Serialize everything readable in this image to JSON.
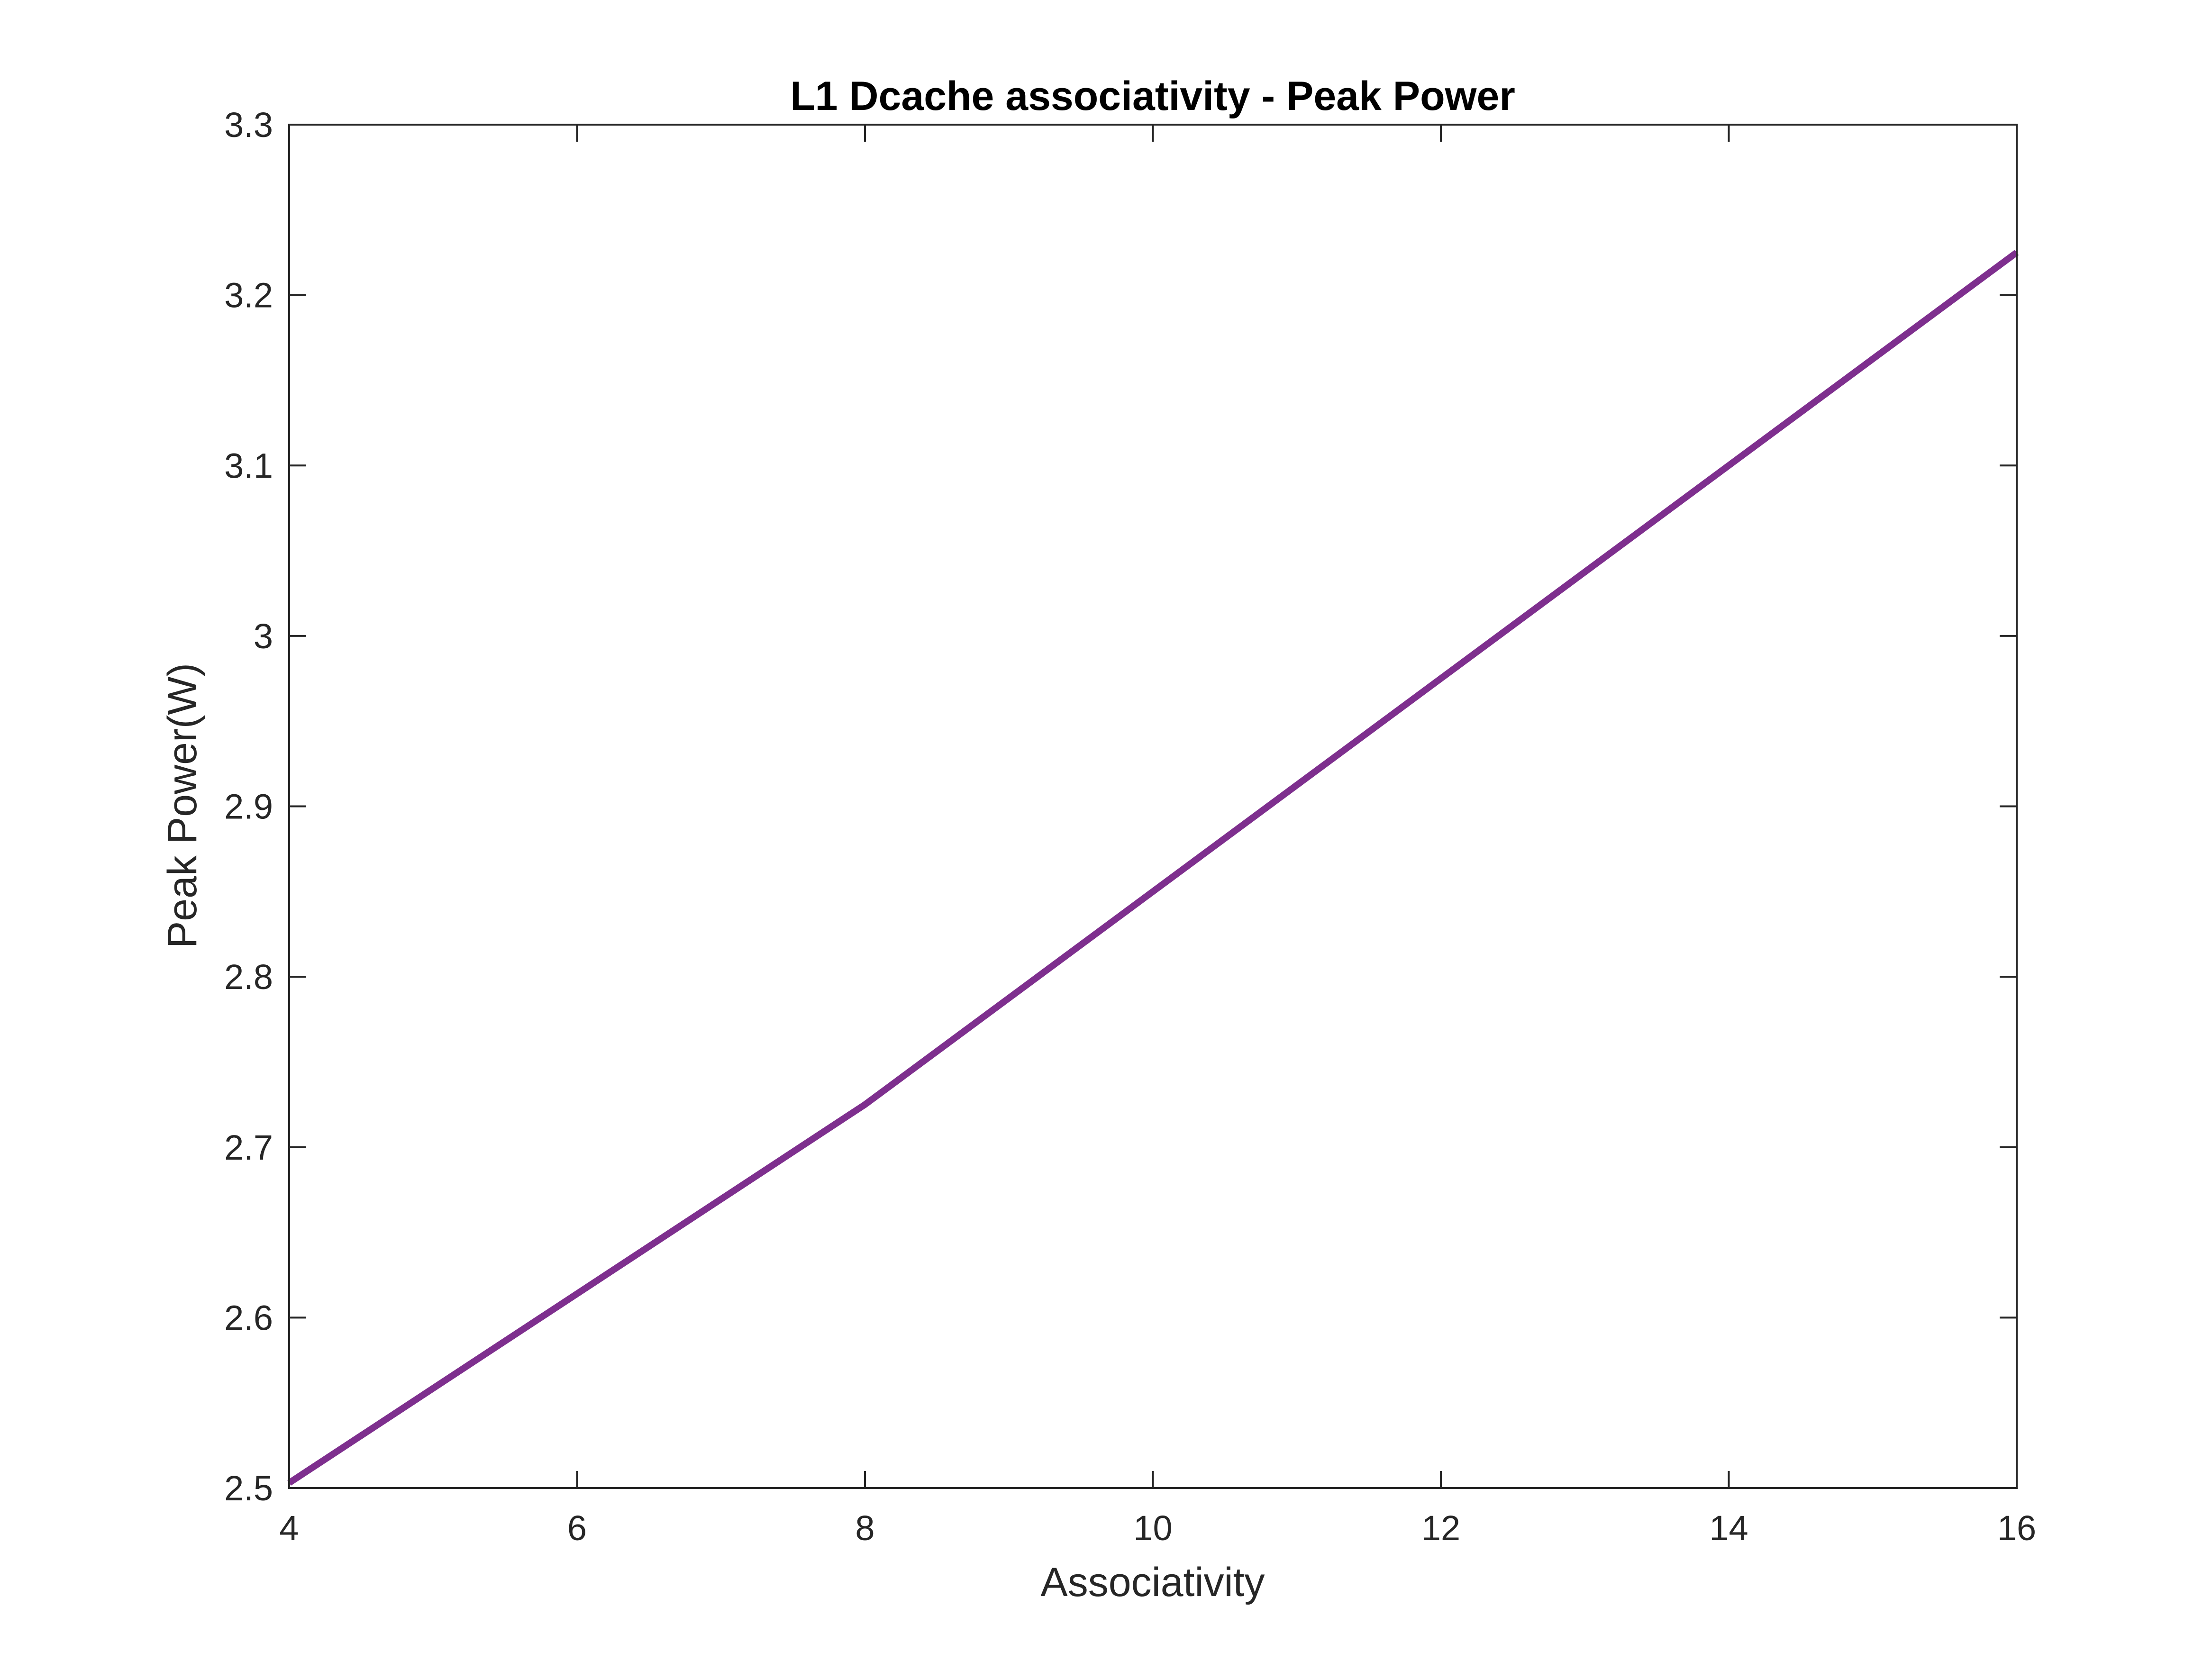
{
  "chart_data": {
    "type": "line",
    "title": "L1 Dcache associativity - Peak Power",
    "xlabel": "Associativity",
    "ylabel": "Peak Power(W)",
    "xlim": [
      4,
      16
    ],
    "ylim": [
      2.5,
      3.3
    ],
    "xticks": [
      4,
      6,
      8,
      10,
      12,
      14,
      16
    ],
    "yticks": [
      2.5,
      2.6,
      2.7,
      2.8,
      2.9,
      3.0,
      3.1,
      3.2,
      3.3
    ],
    "xtick_labels": [
      "4",
      "6",
      "8",
      "10",
      "12",
      "14",
      "16"
    ],
    "ytick_labels": [
      "2.5",
      "2.6",
      "2.7",
      "2.8",
      "2.9",
      "3",
      "3.1",
      "3.2",
      "3.3"
    ],
    "grid": false,
    "series": [
      {
        "x": [
          4,
          8,
          16
        ],
        "y": [
          2.503,
          2.725,
          3.225
        ],
        "color": "#7E2F8E"
      }
    ]
  }
}
